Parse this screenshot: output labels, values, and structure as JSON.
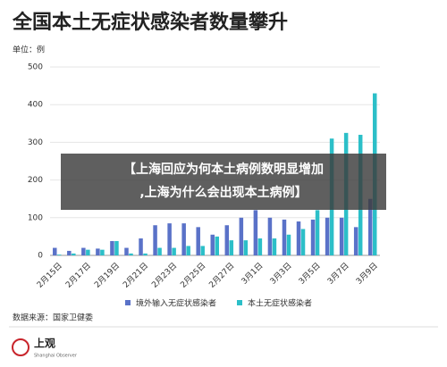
{
  "chart_data": {
    "type": "bar",
    "title": "全国本土无症状感染者数量攀升",
    "y_label": "单位：例",
    "source": "数据来源：国家卫健委",
    "categories": [
      "2月15日",
      null,
      "2月17日",
      null,
      "2月19日",
      null,
      "2月21日",
      null,
      "2月23日",
      null,
      "2月25日",
      null,
      "2月27日",
      null,
      "3月1日",
      null,
      "3月3日",
      null,
      "3月5日",
      null,
      "3月7日",
      null,
      "3月9日"
    ],
    "series": [
      {
        "name": "境外输入无症状感染者",
        "color": "#5a72c8",
        "values": [
          20,
          12,
          20,
          18,
          38,
          20,
          45,
          80,
          85,
          85,
          75,
          55,
          80,
          100,
          120,
          100,
          95,
          90,
          95,
          100,
          100,
          75,
          150
        ]
      },
      {
        "name": "本土无症状感染者",
        "color": "#2cbfc8",
        "values": [
          2,
          5,
          15,
          15,
          38,
          5,
          5,
          20,
          20,
          25,
          25,
          50,
          40,
          40,
          45,
          45,
          55,
          70,
          120,
          310,
          325,
          320,
          430
        ]
      }
    ],
    "ylim": [
      0,
      500
    ],
    "yticks": [
      0,
      100,
      200,
      300,
      400,
      500
    ],
    "grid": true,
    "overlay": {
      "line1": "【上海回应为何本土病例数明显增加",
      "line2": ",上海为什么会出现本土病例】"
    },
    "logo": {
      "name": "上观",
      "subtitle": "Shanghai Observer"
    }
  }
}
